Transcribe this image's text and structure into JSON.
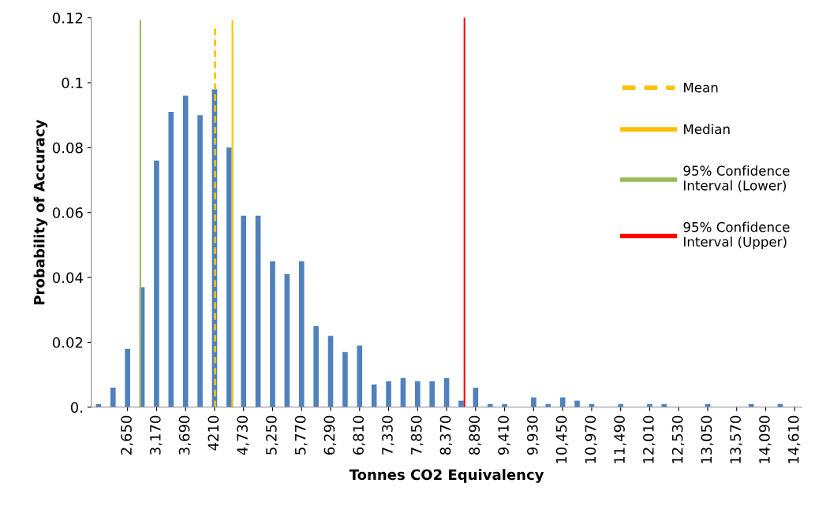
{
  "chart_data": {
    "type": "bar",
    "xlabel": "Tonnes CO2 Equivalency",
    "ylabel": "Probability of Accuracy",
    "x": [
      2130,
      2390,
      2650,
      2910,
      3170,
      3430,
      3690,
      3950,
      4210,
      4470,
      4730,
      4990,
      5250,
      5510,
      5770,
      6030,
      6290,
      6550,
      6810,
      7070,
      7330,
      7590,
      7850,
      8110,
      8370,
      8630,
      8890,
      9150,
      9410,
      9670,
      9930,
      10190,
      10450,
      10710,
      10970,
      11230,
      11490,
      11750,
      12010,
      12270,
      12530,
      12790,
      13050,
      13310,
      13570,
      13830,
      14090,
      14350,
      14610
    ],
    "series": [
      {
        "color": "#4f81bd",
        "values": [
          0.001,
          0.006,
          0.018,
          0.037,
          0.076,
          0.091,
          0.096,
          0.09,
          0.098,
          0.08,
          0.059,
          0.059,
          0.045,
          0.041,
          0.045,
          0.025,
          0.022,
          0.017,
          0.019,
          0.007,
          0.008,
          0.009,
          0.008,
          0.008,
          0.009,
          0.002,
          0.006,
          0.001,
          0.001,
          0,
          0.003,
          0.001,
          0.003,
          0.002,
          0.001,
          0,
          0.001,
          0,
          0.001,
          0.001,
          0,
          0,
          0.001,
          0,
          0,
          0.001,
          0,
          0.001,
          0
        ]
      },
      {
        "type": "line",
        "name": "Mean",
        "color": "#ffc000",
        "line_style": "dashed",
        "x": [
          4220,
          4220
        ],
        "values": [
          0,
          0.117
        ]
      },
      {
        "type": "line",
        "name": "Median",
        "color": "#ffc000",
        "line_style": "solid",
        "x": [
          4530,
          4530
        ],
        "values": [
          0,
          0.119
        ]
      },
      {
        "type": "line",
        "name": "95% Confidence Interval (Lower)",
        "color": "#9bbb59",
        "line_style": "solid",
        "x": [
          2880,
          2880
        ],
        "values": [
          0,
          0.119
        ]
      },
      {
        "type": "line",
        "name": "95% Confidence Interval (Upper)",
        "color": "#ff0000",
        "line_style": "solid",
        "x": [
          8690,
          8690
        ],
        "values": [
          0,
          0.12
        ]
      }
    ],
    "xlim": [
      2000,
      14740
    ],
    "xticks": [
      {
        "value": 2650,
        "label": "2,650"
      },
      {
        "value": 3170,
        "label": "3,170"
      },
      {
        "value": 3690,
        "label": "3,690"
      },
      {
        "value": 4210,
        "label": "4210"
      },
      {
        "value": 4730,
        "label": "4,730"
      },
      {
        "value": 5250,
        "label": "5,250"
      },
      {
        "value": 5770,
        "label": "5,770"
      },
      {
        "value": 6290,
        "label": "6,290"
      },
      {
        "value": 6810,
        "label": "6,810"
      },
      {
        "value": 7330,
        "label": "7,330"
      },
      {
        "value": 7850,
        "label": "7,850"
      },
      {
        "value": 8370,
        "label": "8,370"
      },
      {
        "value": 8890,
        "label": "8,890"
      },
      {
        "value": 9410,
        "label": "9,410"
      },
      {
        "value": 9930,
        "label": "9,930"
      },
      {
        "value": 10450,
        "label": "10,450"
      },
      {
        "value": 10970,
        "label": "10,970"
      },
      {
        "value": 11490,
        "label": "11,490"
      },
      {
        "value": 12010,
        "label": "12,010"
      },
      {
        "value": 12530,
        "label": "12,530"
      },
      {
        "value": 13050,
        "label": "13,050"
      },
      {
        "value": 13570,
        "label": "13,570"
      },
      {
        "value": 14090,
        "label": "14,090"
      },
      {
        "value": 14610,
        "label": "14,610"
      }
    ],
    "ylim": [
      0,
      0.12
    ],
    "yticks": [
      {
        "value": 0,
        "label": "0."
      },
      0.02,
      0.04,
      0.06,
      0.08,
      0.1,
      0.12
    ],
    "grid": false,
    "legend": "right"
  }
}
